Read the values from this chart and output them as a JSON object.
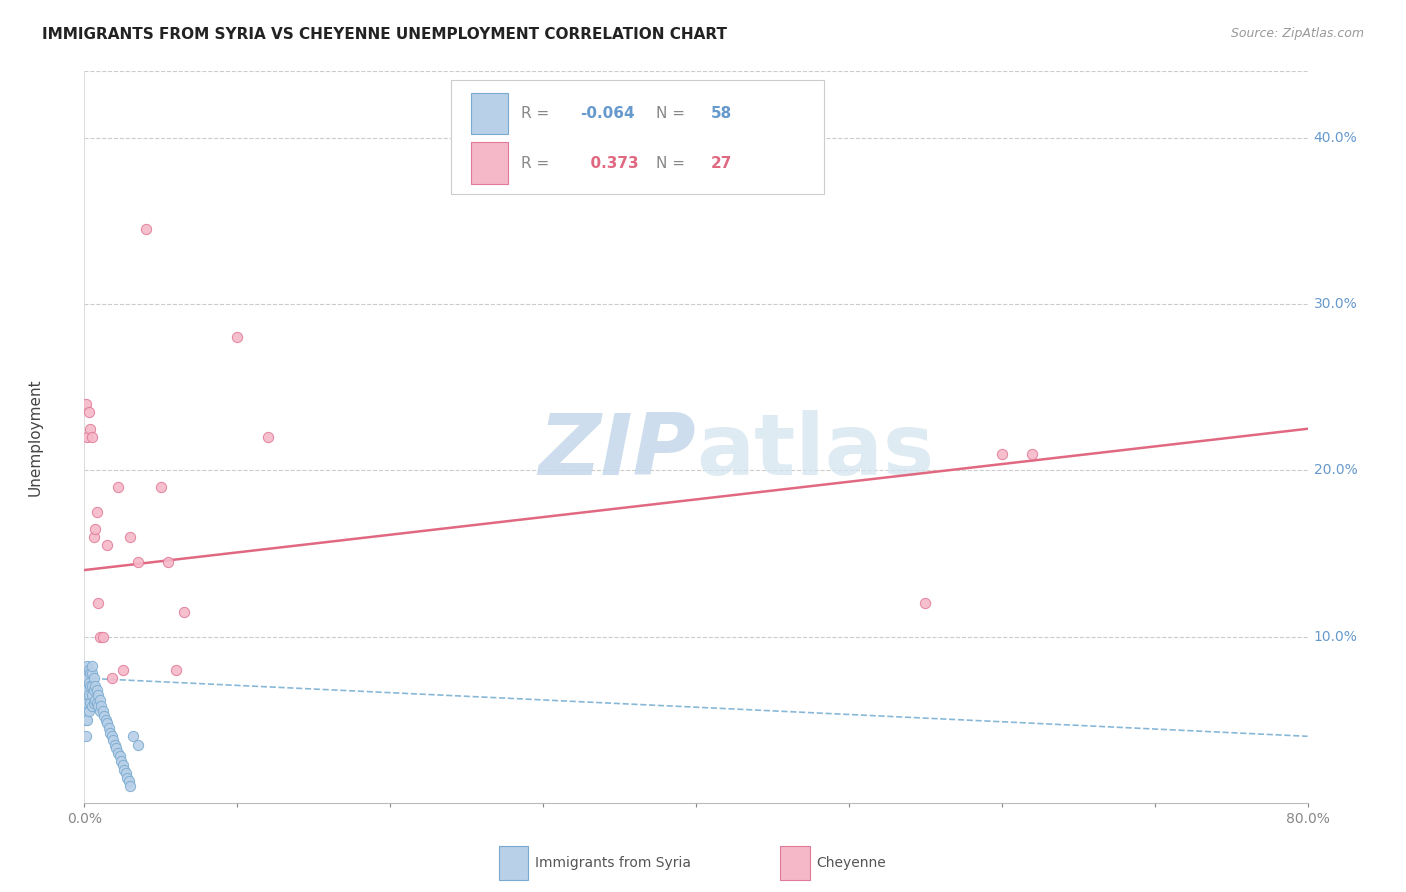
{
  "title": "IMMIGRANTS FROM SYRIA VS CHEYENNE UNEMPLOYMENT CORRELATION CHART",
  "source": "Source: ZipAtlas.com",
  "ylabel": "Unemployment",
  "xlim": [
    0.0,
    0.8
  ],
  "ylim": [
    0.0,
    0.44
  ],
  "xticks": [
    0.0,
    0.1,
    0.2,
    0.3,
    0.4,
    0.5,
    0.6,
    0.7,
    0.8
  ],
  "xticklabels": [
    "0.0%",
    "",
    "",
    "",
    "",
    "",
    "",
    "",
    "80.0%"
  ],
  "yticks_right": [
    0.1,
    0.2,
    0.3,
    0.4
  ],
  "ytick_labels_right": [
    "10.0%",
    "20.0%",
    "30.0%",
    "40.0%"
  ],
  "blue_R": -0.064,
  "blue_N": 58,
  "pink_R": 0.373,
  "pink_N": 27,
  "blue_color": "#b8d0e8",
  "blue_edge_color": "#7aaad0",
  "pink_color": "#f5b8c8",
  "pink_edge_color": "#e07898",
  "blue_line_color": "#88b8d8",
  "pink_line_color": "#e06880",
  "grid_color": "#cccccc",
  "background_color": "#ffffff",
  "watermark_color": "#c8d8e8",
  "legend_blue_label": "Immigrants from Syria",
  "legend_pink_label": "Cheyenne",
  "blue_x": [
    0.001,
    0.001,
    0.001,
    0.001,
    0.001,
    0.001,
    0.001,
    0.001,
    0.002,
    0.002,
    0.002,
    0.002,
    0.002,
    0.003,
    0.003,
    0.003,
    0.003,
    0.004,
    0.004,
    0.004,
    0.005,
    0.005,
    0.005,
    0.005,
    0.005,
    0.006,
    0.006,
    0.006,
    0.007,
    0.007,
    0.008,
    0.008,
    0.009,
    0.009,
    0.01,
    0.01,
    0.011,
    0.012,
    0.013,
    0.014,
    0.015,
    0.016,
    0.017,
    0.018,
    0.019,
    0.02,
    0.021,
    0.022,
    0.023,
    0.024,
    0.025,
    0.026,
    0.027,
    0.028,
    0.029,
    0.03,
    0.032,
    0.035
  ],
  "blue_y": [
    0.04,
    0.05,
    0.055,
    0.06,
    0.065,
    0.07,
    0.075,
    0.08,
    0.05,
    0.06,
    0.068,
    0.075,
    0.082,
    0.055,
    0.065,
    0.072,
    0.08,
    0.06,
    0.07,
    0.078,
    0.058,
    0.065,
    0.07,
    0.078,
    0.082,
    0.06,
    0.068,
    0.075,
    0.062,
    0.07,
    0.06,
    0.068,
    0.058,
    0.065,
    0.055,
    0.062,
    0.058,
    0.055,
    0.052,
    0.05,
    0.048,
    0.045,
    0.042,
    0.04,
    0.038,
    0.035,
    0.033,
    0.03,
    0.028,
    0.025,
    0.023,
    0.02,
    0.018,
    0.015,
    0.013,
    0.01,
    0.04,
    0.035
  ],
  "pink_x": [
    0.001,
    0.002,
    0.003,
    0.004,
    0.005,
    0.006,
    0.007,
    0.008,
    0.009,
    0.01,
    0.012,
    0.015,
    0.018,
    0.022,
    0.025,
    0.03,
    0.035,
    0.04,
    0.05,
    0.055,
    0.06,
    0.065,
    0.1,
    0.12,
    0.55,
    0.6,
    0.62
  ],
  "pink_y": [
    0.24,
    0.22,
    0.235,
    0.225,
    0.22,
    0.16,
    0.165,
    0.175,
    0.12,
    0.1,
    0.1,
    0.155,
    0.075,
    0.19,
    0.08,
    0.16,
    0.145,
    0.345,
    0.19,
    0.145,
    0.08,
    0.115,
    0.28,
    0.22,
    0.12,
    0.21,
    0.21
  ],
  "blue_line_x": [
    0.0,
    0.8
  ],
  "blue_line_y": [
    0.075,
    0.04
  ],
  "pink_line_x": [
    0.0,
    0.8
  ],
  "pink_line_y": [
    0.14,
    0.225
  ]
}
